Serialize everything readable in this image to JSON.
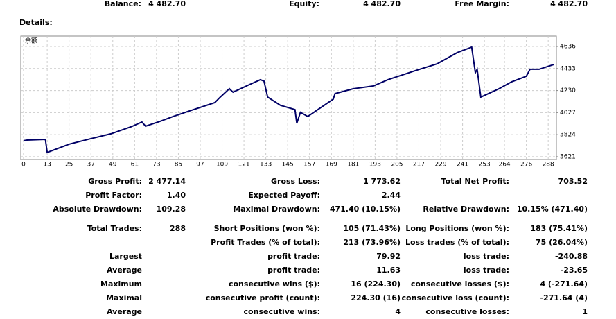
{
  "header": {
    "items": [
      {
        "label": "Balance:",
        "value": "4 482.70"
      },
      {
        "label": "Equity:",
        "value": "4 482.70"
      },
      {
        "label": "Free Margin:",
        "value": "4 482.70"
      }
    ]
  },
  "details": "Details:",
  "chart_data": {
    "type": "line",
    "label": "余额",
    "x": [
      0,
      2,
      12,
      13,
      25,
      37,
      48,
      59,
      65,
      67,
      75,
      82,
      90,
      105,
      108,
      113,
      115,
      124,
      130,
      132,
      134,
      141,
      149,
      150,
      152,
      156,
      170,
      171,
      181,
      192,
      200,
      215,
      227,
      238,
      246,
      248,
      249,
      251,
      261,
      268,
      276,
      278,
      283,
      291
    ],
    "series": [
      {
        "color": "#000066",
        "values": [
          3768,
          3774,
          3780,
          3660,
          3736,
          3787,
          3832,
          3896,
          3940,
          3902,
          3947,
          3991,
          4036,
          4119,
          4170,
          4247,
          4215,
          4285,
          4330,
          4317,
          4170,
          4094,
          4055,
          3928,
          4030,
          3991,
          4151,
          4202,
          4247,
          4272,
          4330,
          4413,
          4476,
          4579,
          4630,
          4394,
          4426,
          4170,
          4247,
          4311,
          4362,
          4426,
          4426,
          4470
        ]
      }
    ],
    "xlim": [
      -1.5,
      292.5
    ],
    "ylim": [
      3595,
      4732
    ],
    "xticks": [
      0,
      13,
      25,
      37,
      49,
      61,
      73,
      85,
      97,
      109,
      121,
      133,
      145,
      157,
      169,
      181,
      193,
      205,
      217,
      229,
      241,
      253,
      264,
      276,
      288
    ],
    "yticks": [
      3621,
      3824,
      4027,
      4230,
      4433,
      4636
    ],
    "grid": true
  },
  "table": {
    "rows": [
      [
        "Gross Profit:",
        "2 477.14",
        "Gross Loss:",
        "1 773.62",
        "Total Net Profit:",
        "703.52"
      ],
      [
        "Profit Factor:",
        "1.40",
        "Expected Payoff:",
        "2.44",
        null,
        null
      ],
      [
        "Absolute Drawdown:",
        "109.28",
        "Maximal Drawdown:",
        "471.40 (10.15%)",
        "Relative Drawdown:",
        "10.15% (471.40)"
      ],
      [
        "Total Trades:",
        "288",
        "Short Positions (won %):",
        "105 (71.43%)",
        "Long Positions (won %):",
        "183 (75.41%)"
      ],
      [
        null,
        null,
        "Profit Trades (% of total):",
        "213 (73.96%)",
        "Loss trades (% of total):",
        "75 (26.04%)"
      ],
      [
        "Largest",
        null,
        "profit trade:",
        "79.92",
        "loss trade:",
        "-240.88"
      ],
      [
        "Average",
        null,
        "profit trade:",
        "11.63",
        "loss trade:",
        "-23.65"
      ],
      [
        "Maximum",
        null,
        "consecutive wins ($):",
        "16 (224.30)",
        "consecutive losses ($):",
        "4 (-271.64)"
      ],
      [
        "Maximal",
        null,
        "consecutive profit (count):",
        "224.30 (16)",
        "consecutive loss (count):",
        "-271.64 (4)"
      ],
      [
        "Average",
        null,
        "consecutive wins:",
        "4",
        "consecutive losses:",
        "1"
      ]
    ]
  }
}
